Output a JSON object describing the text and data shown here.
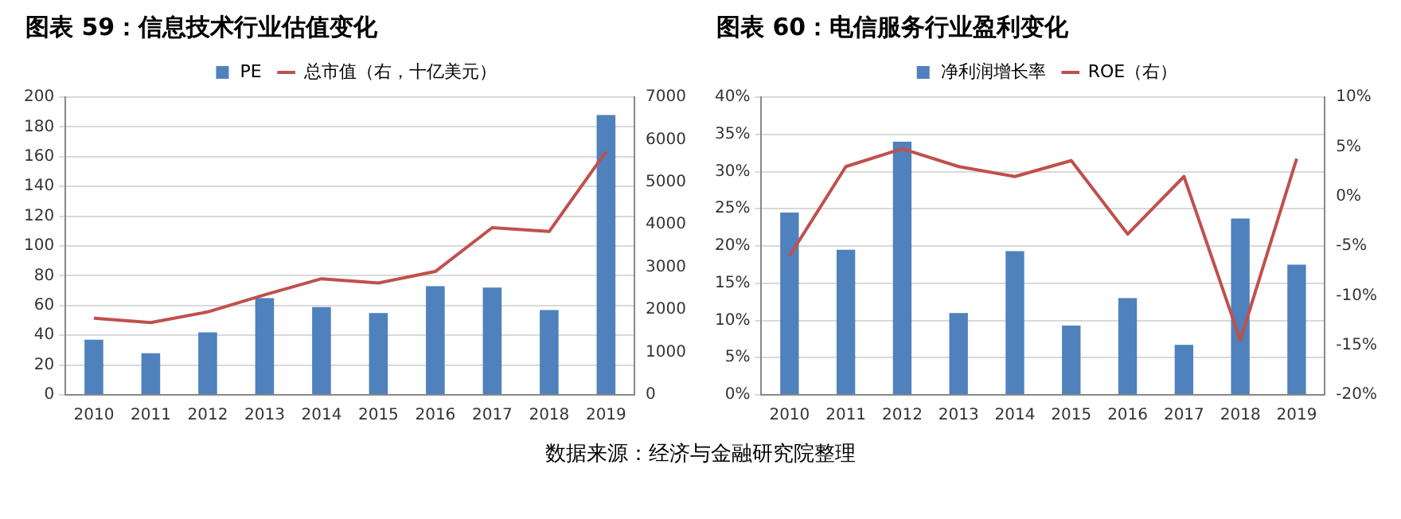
{
  "chart_data": [
    {
      "type": "bar",
      "title": "图表 59：信息技术行业估值变化",
      "categories": [
        "2010",
        "2011",
        "2012",
        "2013",
        "2014",
        "2015",
        "2016",
        "2017",
        "2018",
        "2019"
      ],
      "series": [
        {
          "name": "PE",
          "color": "#4f81bd",
          "values": [
            37,
            28,
            42,
            65,
            59,
            55,
            73,
            72,
            57,
            188
          ]
        },
        {
          "name": "总市值（右，十亿美元）",
          "type": "line",
          "axis": "y2",
          "color": "#c0504d",
          "values": [
            1800,
            1700,
            1950,
            2350,
            2730,
            2630,
            2900,
            3930,
            3840,
            5720
          ]
        }
      ],
      "ylim": [
        0,
        200
      ],
      "yticks": [
        0,
        20,
        40,
        60,
        80,
        100,
        120,
        140,
        160,
        180,
        200
      ],
      "y2lim": [
        0,
        7000
      ],
      "y2ticks": [
        0,
        1000,
        2000,
        3000,
        4000,
        5000,
        6000,
        7000
      ],
      "grid": "y",
      "legend": "top",
      "marker": "none",
      "annotations": [
        "数据来源：经济与金融研究院整理"
      ]
    },
    {
      "type": "bar",
      "title": "图表 60：电信服务行业盈利变化",
      "categories": [
        "2010",
        "2011",
        "2012",
        "2013",
        "2014",
        "2015",
        "2016",
        "2017",
        "2018",
        "2019"
      ],
      "series": [
        {
          "name": "净利润增长率",
          "color": "#4f81bd",
          "values": [
            24.5,
            19.5,
            34,
            11,
            19.3,
            9.3,
            13,
            6.7,
            23.7,
            17.5
          ]
        },
        {
          "name": "ROE（右）",
          "type": "line",
          "axis": "y2",
          "color": "#c0504d",
          "values": [
            -6,
            3,
            4.8,
            3,
            2,
            3.6,
            -3.8,
            2,
            -14.5,
            3.8
          ]
        }
      ],
      "ylim": [
        0,
        40
      ],
      "yticks": [
        {
          "value": 0,
          "label": "0%"
        },
        {
          "value": 5,
          "label": "5%"
        },
        {
          "value": 10,
          "label": "10%"
        },
        {
          "value": 15,
          "label": "15%"
        },
        {
          "value": 20,
          "label": "20%"
        },
        {
          "value": 25,
          "label": "25%"
        },
        {
          "value": 30,
          "label": "30%"
        },
        {
          "value": 35,
          "label": "35%"
        },
        {
          "value": 40,
          "label": "40%"
        }
      ],
      "y2lim": [
        -20,
        10
      ],
      "y2ticks": [
        {
          "value": -20,
          "label": "-20%"
        },
        {
          "value": -15,
          "label": "-15%"
        },
        {
          "value": -10,
          "label": "-10%"
        },
        {
          "value": -5,
          "label": "-5%"
        },
        {
          "value": 0,
          "label": "0%"
        },
        {
          "value": 5,
          "label": "5%"
        },
        {
          "value": 10,
          "label": "10%"
        }
      ],
      "grid": "y",
      "legend": "top",
      "marker": "none"
    }
  ]
}
